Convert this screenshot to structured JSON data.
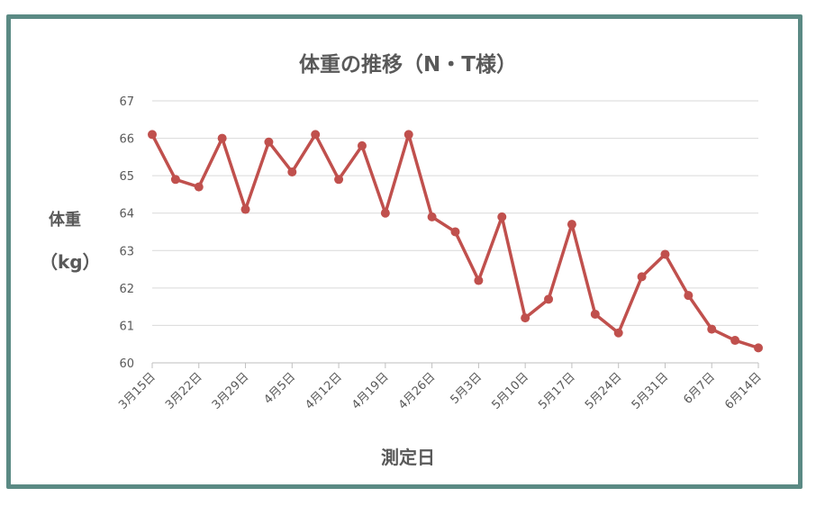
{
  "chart_data": {
    "type": "line",
    "title": "体重の推移（N・T様）",
    "ylabel_line1": "体重",
    "ylabel_line2": "（kg）",
    "xlabel": "測定日",
    "ylim": [
      60,
      67
    ],
    "yticks": [
      60,
      61,
      62,
      63,
      64,
      65,
      66,
      67
    ],
    "xticks": [
      "3月15日",
      "3月22日",
      "3月29日",
      "4月5日",
      "4月12日",
      "4月19日",
      "4月26日",
      "5月3日",
      "5月10日",
      "5月17日",
      "5月24日",
      "5月31日",
      "6月7日",
      "6月14日"
    ],
    "grid": true,
    "series_color": "#c0504d",
    "points": [
      {
        "x": "3月15日",
        "y": 66.1
      },
      {
        "x": "3月18日",
        "y": 64.9
      },
      {
        "x": "3月22日",
        "y": 64.7
      },
      {
        "x": "3月25日",
        "y": 66.0
      },
      {
        "x": "3月29日",
        "y": 64.1
      },
      {
        "x": "4月1日",
        "y": 65.9
      },
      {
        "x": "4月5日",
        "y": 65.1
      },
      {
        "x": "4月8日",
        "y": 66.1
      },
      {
        "x": "4月12日",
        "y": 64.9
      },
      {
        "x": "4月15日",
        "y": 65.8
      },
      {
        "x": "4月19日",
        "y": 64.0
      },
      {
        "x": "4月22日",
        "y": 66.1
      },
      {
        "x": "4月26日",
        "y": 63.9
      },
      {
        "x": "4月29日",
        "y": 63.5
      },
      {
        "x": "5月3日",
        "y": 62.2
      },
      {
        "x": "5月6日",
        "y": 63.9
      },
      {
        "x": "5月10日",
        "y": 61.2
      },
      {
        "x": "5月13日",
        "y": 61.7
      },
      {
        "x": "5月17日",
        "y": 63.7
      },
      {
        "x": "5月20日",
        "y": 61.3
      },
      {
        "x": "5月24日",
        "y": 60.8
      },
      {
        "x": "5月27日",
        "y": 62.3
      },
      {
        "x": "5月31日",
        "y": 62.9
      },
      {
        "x": "6月2日",
        "y": 61.8
      },
      {
        "x": "6月7日",
        "y": 60.9
      },
      {
        "x": "6月10日",
        "y": 60.6
      },
      {
        "x": "6月14日",
        "y": 60.4
      }
    ]
  }
}
